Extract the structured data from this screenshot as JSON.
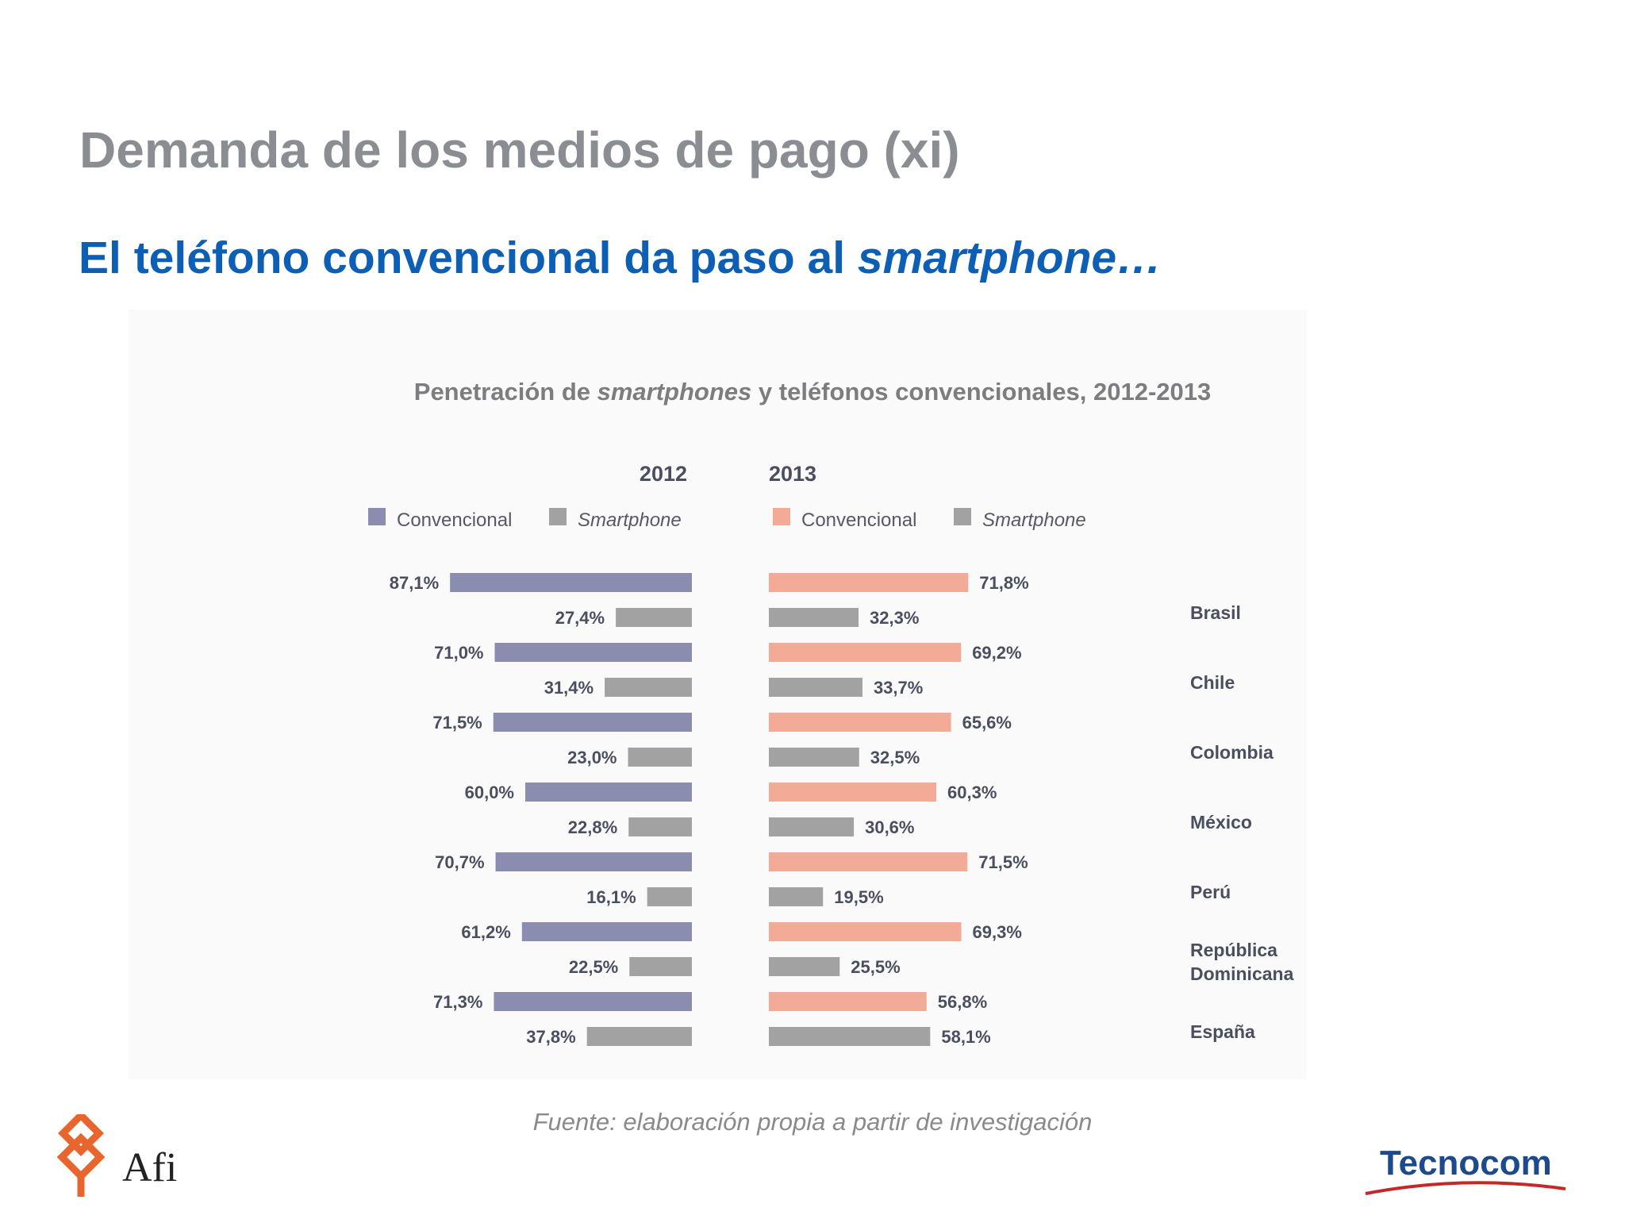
{
  "slide": {
    "title": "Demanda de los medios de pago (xi)",
    "subtitle_main": "El teléfono convencional da paso al ",
    "subtitle_em": "smartphone…"
  },
  "chart_title": {
    "part1": "Penetración de ",
    "part2_em": "smartphones",
    "part3": " y teléfonos convencionales, 2012-2013"
  },
  "source": "Fuente: elaboración propia a partir de investigación",
  "logos": {
    "afi": "Afi",
    "tecnocom": "Tecnocom"
  },
  "colors": {
    "convencional_2012": "#8a8db0",
    "convencional_2013": "#f3ab98",
    "smartphone": "#a2a2a2",
    "label_text": "#4a4f60"
  },
  "chart_data": {
    "type": "bar",
    "orientation": "horizontal",
    "layout": "back-to-back",
    "categories": [
      "Brasil",
      "Chile",
      "Colombia",
      "México",
      "Perú",
      "República Dominicana",
      "España"
    ],
    "category_lines": [
      [
        "Brasil"
      ],
      [
        "Chile"
      ],
      [
        "Colombia"
      ],
      [
        "México"
      ],
      [
        "Perú"
      ],
      [
        "República",
        "Dominicana"
      ],
      [
        "España"
      ]
    ],
    "unit": "%",
    "panels": [
      {
        "year": "2012",
        "direction": "left",
        "legend": [
          "Convencional",
          "Smartphone"
        ],
        "series": [
          {
            "name": "Convencional",
            "values": [
              87.1,
              71.0,
              71.5,
              60.0,
              70.7,
              61.2,
              71.3
            ],
            "labels": [
              "87,1%",
              "71,0%",
              "71,5%",
              "60,0%",
              "70,7%",
              "61,2%",
              "71,3%"
            ]
          },
          {
            "name": "Smartphone",
            "values": [
              27.4,
              31.4,
              23.0,
              22.8,
              16.1,
              22.5,
              37.8
            ],
            "labels": [
              "27,4%",
              "31,4%",
              "23,0%",
              "22,8%",
              "16,1%",
              "22,5%",
              "37,8%"
            ]
          }
        ]
      },
      {
        "year": "2013",
        "direction": "right",
        "legend": [
          "Convencional",
          "Smartphone"
        ],
        "series": [
          {
            "name": "Convencional",
            "values": [
              71.8,
              69.2,
              65.6,
              60.3,
              71.5,
              69.3,
              56.8
            ],
            "labels": [
              "71,8%",
              "69,2%",
              "65,6%",
              "60,3%",
              "71,5%",
              "69,3%",
              "56,8%"
            ]
          },
          {
            "name": "Smartphone",
            "values": [
              32.3,
              33.7,
              32.5,
              30.6,
              19.5,
              25.5,
              58.1
            ],
            "labels": [
              "32,3%",
              "33,7%",
              "32,5%",
              "30,6%",
              "19,5%",
              "25,5%",
              "58,1%"
            ]
          }
        ]
      }
    ]
  }
}
